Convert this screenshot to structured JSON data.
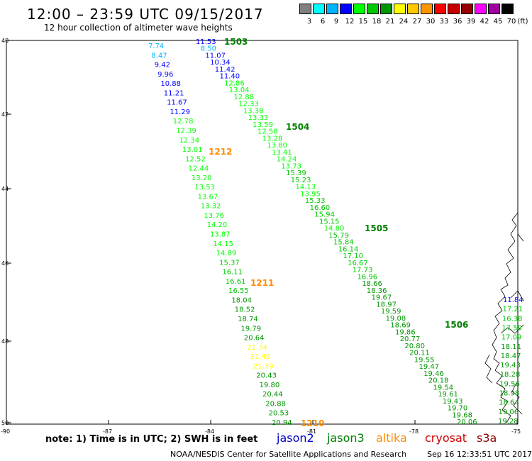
{
  "header": {
    "title": "12:00 – 23:59 UTC 09/15/2017",
    "subtitle": "12 hour collection of altimeter wave heights"
  },
  "colorbar": {
    "labels": [
      "3",
      "6",
      "9",
      "12",
      "15",
      "18",
      "21",
      "24",
      "27",
      "30",
      "33",
      "36",
      "39",
      "42",
      "45",
      "70"
    ],
    "unit": "(ft)",
    "colors": [
      "#808080",
      "#00ffff",
      "#00b4ff",
      "#0000ff",
      "#00ff00",
      "#00c800",
      "#009600",
      "#ffff00",
      "#ffc800",
      "#ff9600",
      "#ff0000",
      "#c80000",
      "#960000",
      "#ff00ff",
      "#a000a0",
      "#000000"
    ]
  },
  "axes": {
    "lat_labels": [
      "40",
      "42",
      "44",
      "46",
      "48",
      "50"
    ],
    "lon_labels": [
      "-90",
      "-87",
      "-84",
      "-81",
      "-78",
      "-75"
    ]
  },
  "passes": [
    {
      "id": "1503",
      "color": "#008000"
    },
    {
      "id": "1504",
      "color": "#008000"
    },
    {
      "id": "1505",
      "color": "#008000"
    },
    {
      "id": "1506",
      "color": "#008000"
    },
    {
      "id": "1212",
      "color": "#ff8c00"
    },
    {
      "id": "1211",
      "color": "#ff8c00"
    },
    {
      "id": "1210",
      "color": "#ff8c00"
    }
  ],
  "tracks": {
    "track_a": [
      "7.74",
      "8.47",
      "9.42",
      "9.96",
      "10.88",
      "11.21",
      "11.67",
      "11.29",
      "12.78",
      "12.39",
      "12.34",
      "13.01",
      "12.52",
      "12.44",
      "13.20",
      "13.53",
      "13.67",
      "13.32",
      "13.76",
      "14.20",
      "13.87",
      "14.15",
      "14.89",
      "15.37",
      "16.11",
      "16.61",
      "16.55",
      "18.04",
      "18.52",
      "18.74",
      "19.79",
      "20.64",
      "21.34",
      "22.49",
      "21.39",
      "20.43",
      "19.80",
      "20.44",
      "20.88",
      "20.53",
      "20.94"
    ],
    "track_b": [
      "11.53",
      "8.50",
      "11.07",
      "10.34",
      "11.42",
      "11.40",
      "12.86",
      "13.04",
      "12.88",
      "12.33",
      "13.38",
      "13.33",
      "13.59",
      "12.58",
      "13.28",
      "13.80",
      "13.41",
      "14.24",
      "13.73",
      "15.39",
      "15.23",
      "14.13",
      "13.95",
      "15.33",
      "16.60",
      "15.94",
      "15.15",
      "14.80",
      "15.79",
      "15.84",
      "16.14",
      "17.10",
      "16.67",
      "17.73",
      "16.96",
      "18.66",
      "18.36",
      "19.67",
      "18.97",
      "19.59",
      "19.08",
      "18.69",
      "19.86",
      "20.77",
      "20.80",
      "20.11",
      "19.55",
      "19.47",
      "19.46",
      "20.18",
      "19.54",
      "19.61",
      "19.43",
      "19.70",
      "19.68",
      "20.06"
    ],
    "track_c": [
      "11.84",
      "17.21",
      "16.38",
      "17.59",
      "17.09",
      "18.11",
      "18.47",
      "19.43",
      "18.28",
      "19.56",
      "18.98",
      "18.64",
      "19.06",
      "19.28"
    ]
  },
  "note": "note:  1) Time is in UTC;  2) SWH is in feet",
  "legend": [
    {
      "label": "jason2",
      "color": "#0000cc"
    },
    {
      "label": "jason3",
      "color": "#008000"
    },
    {
      "label": "altika",
      "color": "#ff8c00"
    },
    {
      "label": "cryosat",
      "color": "#cc0000"
    },
    {
      "label": "s3a",
      "color": "#8b0000"
    }
  ],
  "footer": {
    "credit": "NOAA/NESDIS Center for Satellite Applications and Research",
    "timestamp": "Sep 16 12:33:51 UTC 2017"
  }
}
